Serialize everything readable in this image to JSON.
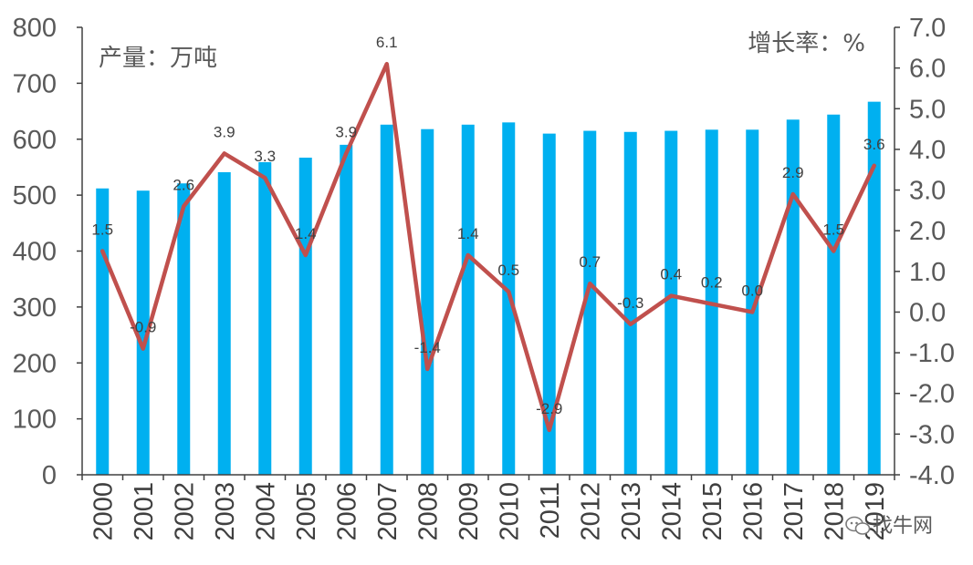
{
  "chart_data": {
    "type": "bar+line",
    "categories": [
      "2000",
      "2001",
      "2002",
      "2003",
      "2004",
      "2005",
      "2006",
      "2007",
      "2008",
      "2009",
      "2010",
      "2011",
      "2012",
      "2013",
      "2014",
      "2015",
      "2016",
      "2017",
      "2018",
      "2019"
    ],
    "series": [
      {
        "name": "产量",
        "type": "bar",
        "axis": "left",
        "color": "#00B0F0",
        "values": [
          512,
          508,
          521,
          541,
          559,
          567,
          590,
          626,
          618,
          626,
          630,
          610,
          615,
          613,
          615,
          617,
          617,
          635,
          644,
          667
        ]
      },
      {
        "name": "增长率",
        "type": "line",
        "axis": "right",
        "color": "#C0504D",
        "values": [
          1.5,
          -0.9,
          2.6,
          3.9,
          3.3,
          1.4,
          3.9,
          6.1,
          -1.4,
          1.4,
          0.5,
          -2.9,
          0.7,
          -0.3,
          0.4,
          0.2,
          0.0,
          2.9,
          1.5,
          3.6
        ],
        "labels": [
          "1.5",
          "-0.9",
          "2.6",
          "3.9",
          "3.3",
          "1.4",
          "3.9",
          "6.1",
          "-1.4",
          "1.4",
          "0.5",
          "-2.9",
          "0.7",
          "-0.3",
          "0.4",
          "0.2",
          "0.0",
          "2.9",
          "1.5",
          "3.6"
        ]
      }
    ],
    "y_left": {
      "label": "产量：万吨",
      "lim": [
        0,
        800
      ],
      "ticks": [
        "0",
        "100",
        "200",
        "300",
        "400",
        "500",
        "600",
        "700",
        "800"
      ]
    },
    "y_right": {
      "label": "增长率：%",
      "lim": [
        -4.0,
        7.0
      ],
      "ticks": [
        "-4.0",
        "-3.0",
        "-2.0",
        "-1.0",
        "0.0",
        "1.0",
        "2.0",
        "3.0",
        "4.0",
        "5.0",
        "6.0",
        "7.0"
      ]
    },
    "grid": false
  },
  "watermark": {
    "text": "找牛网",
    "icon": "wechat-icon"
  }
}
